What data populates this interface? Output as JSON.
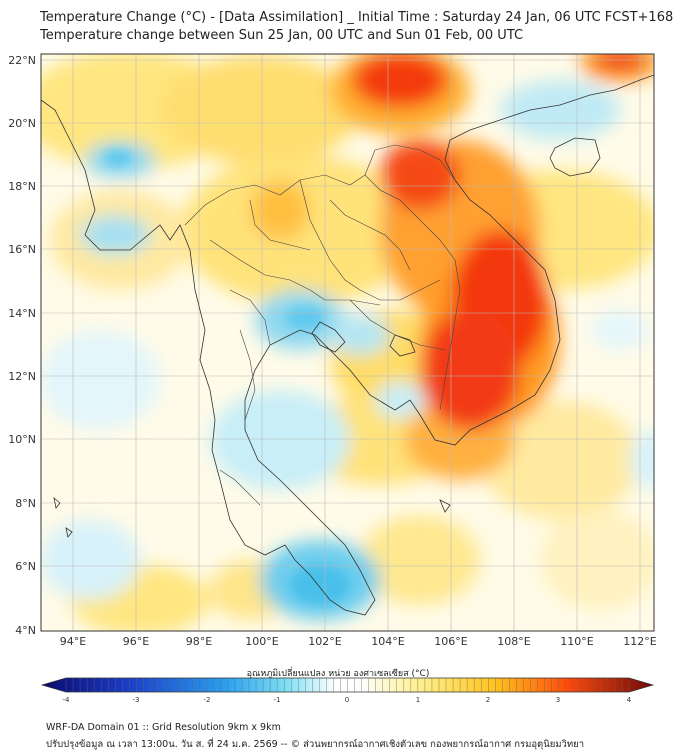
{
  "header": {
    "title_line1": "Temperature Change (°C) - [Data Assimilation] _ Initial Time : Saturday 24 Jan, 06 UTC FCST+168",
    "title_line2": "Temperature change between Sun 25 Jan, 00 UTC and Sun 01 Feb, 00 UTC"
  },
  "map": {
    "lat_labels": [
      "22°N",
      "20°N",
      "18°N",
      "16°N",
      "14°N",
      "12°N",
      "10°N",
      "8°N",
      "6°N",
      "4°N"
    ],
    "lon_labels": [
      "94°E",
      "96°E",
      "98°E",
      "100°E",
      "102°E",
      "104°E",
      "106°E",
      "108°E",
      "110°E",
      "112°E"
    ],
    "lat_range": [
      4,
      22.2
    ],
    "lon_range": [
      93.0,
      112.5
    ]
  },
  "colorbar": {
    "title": "อุณหภูมิเปลี่ยนแปลง หน่วย องศาเซลเซียส (°C)",
    "tick_labels": [
      "-4",
      "-3",
      "-2",
      "-1",
      "0",
      "1",
      "2",
      "3",
      "4"
    ],
    "range": [
      -4,
      4
    ],
    "colors": {
      "cold_extreme": "#0a0a6e",
      "cold": "#1e5adc",
      "cool": "#5ad2f0",
      "neutral": "#ffffff",
      "warm": "#ffe15a",
      "hot": "#ff5a0a",
      "hot_extreme": "#6e0a0a"
    }
  },
  "footer": {
    "line1": "WRF-DA Domain 01 :: Grid Resolution 9km x 9km",
    "line2": "ปรับปรุงข้อมูล ณ เวลา 13:00น. วัน ส. ที่ 24 ม.ค. 2569 -- © ส่วนพยากรณ์อากาศเชิงตัวเลข กองพยากรณ์อากาศ กรมอุตุนิยมวิทยา"
  }
}
